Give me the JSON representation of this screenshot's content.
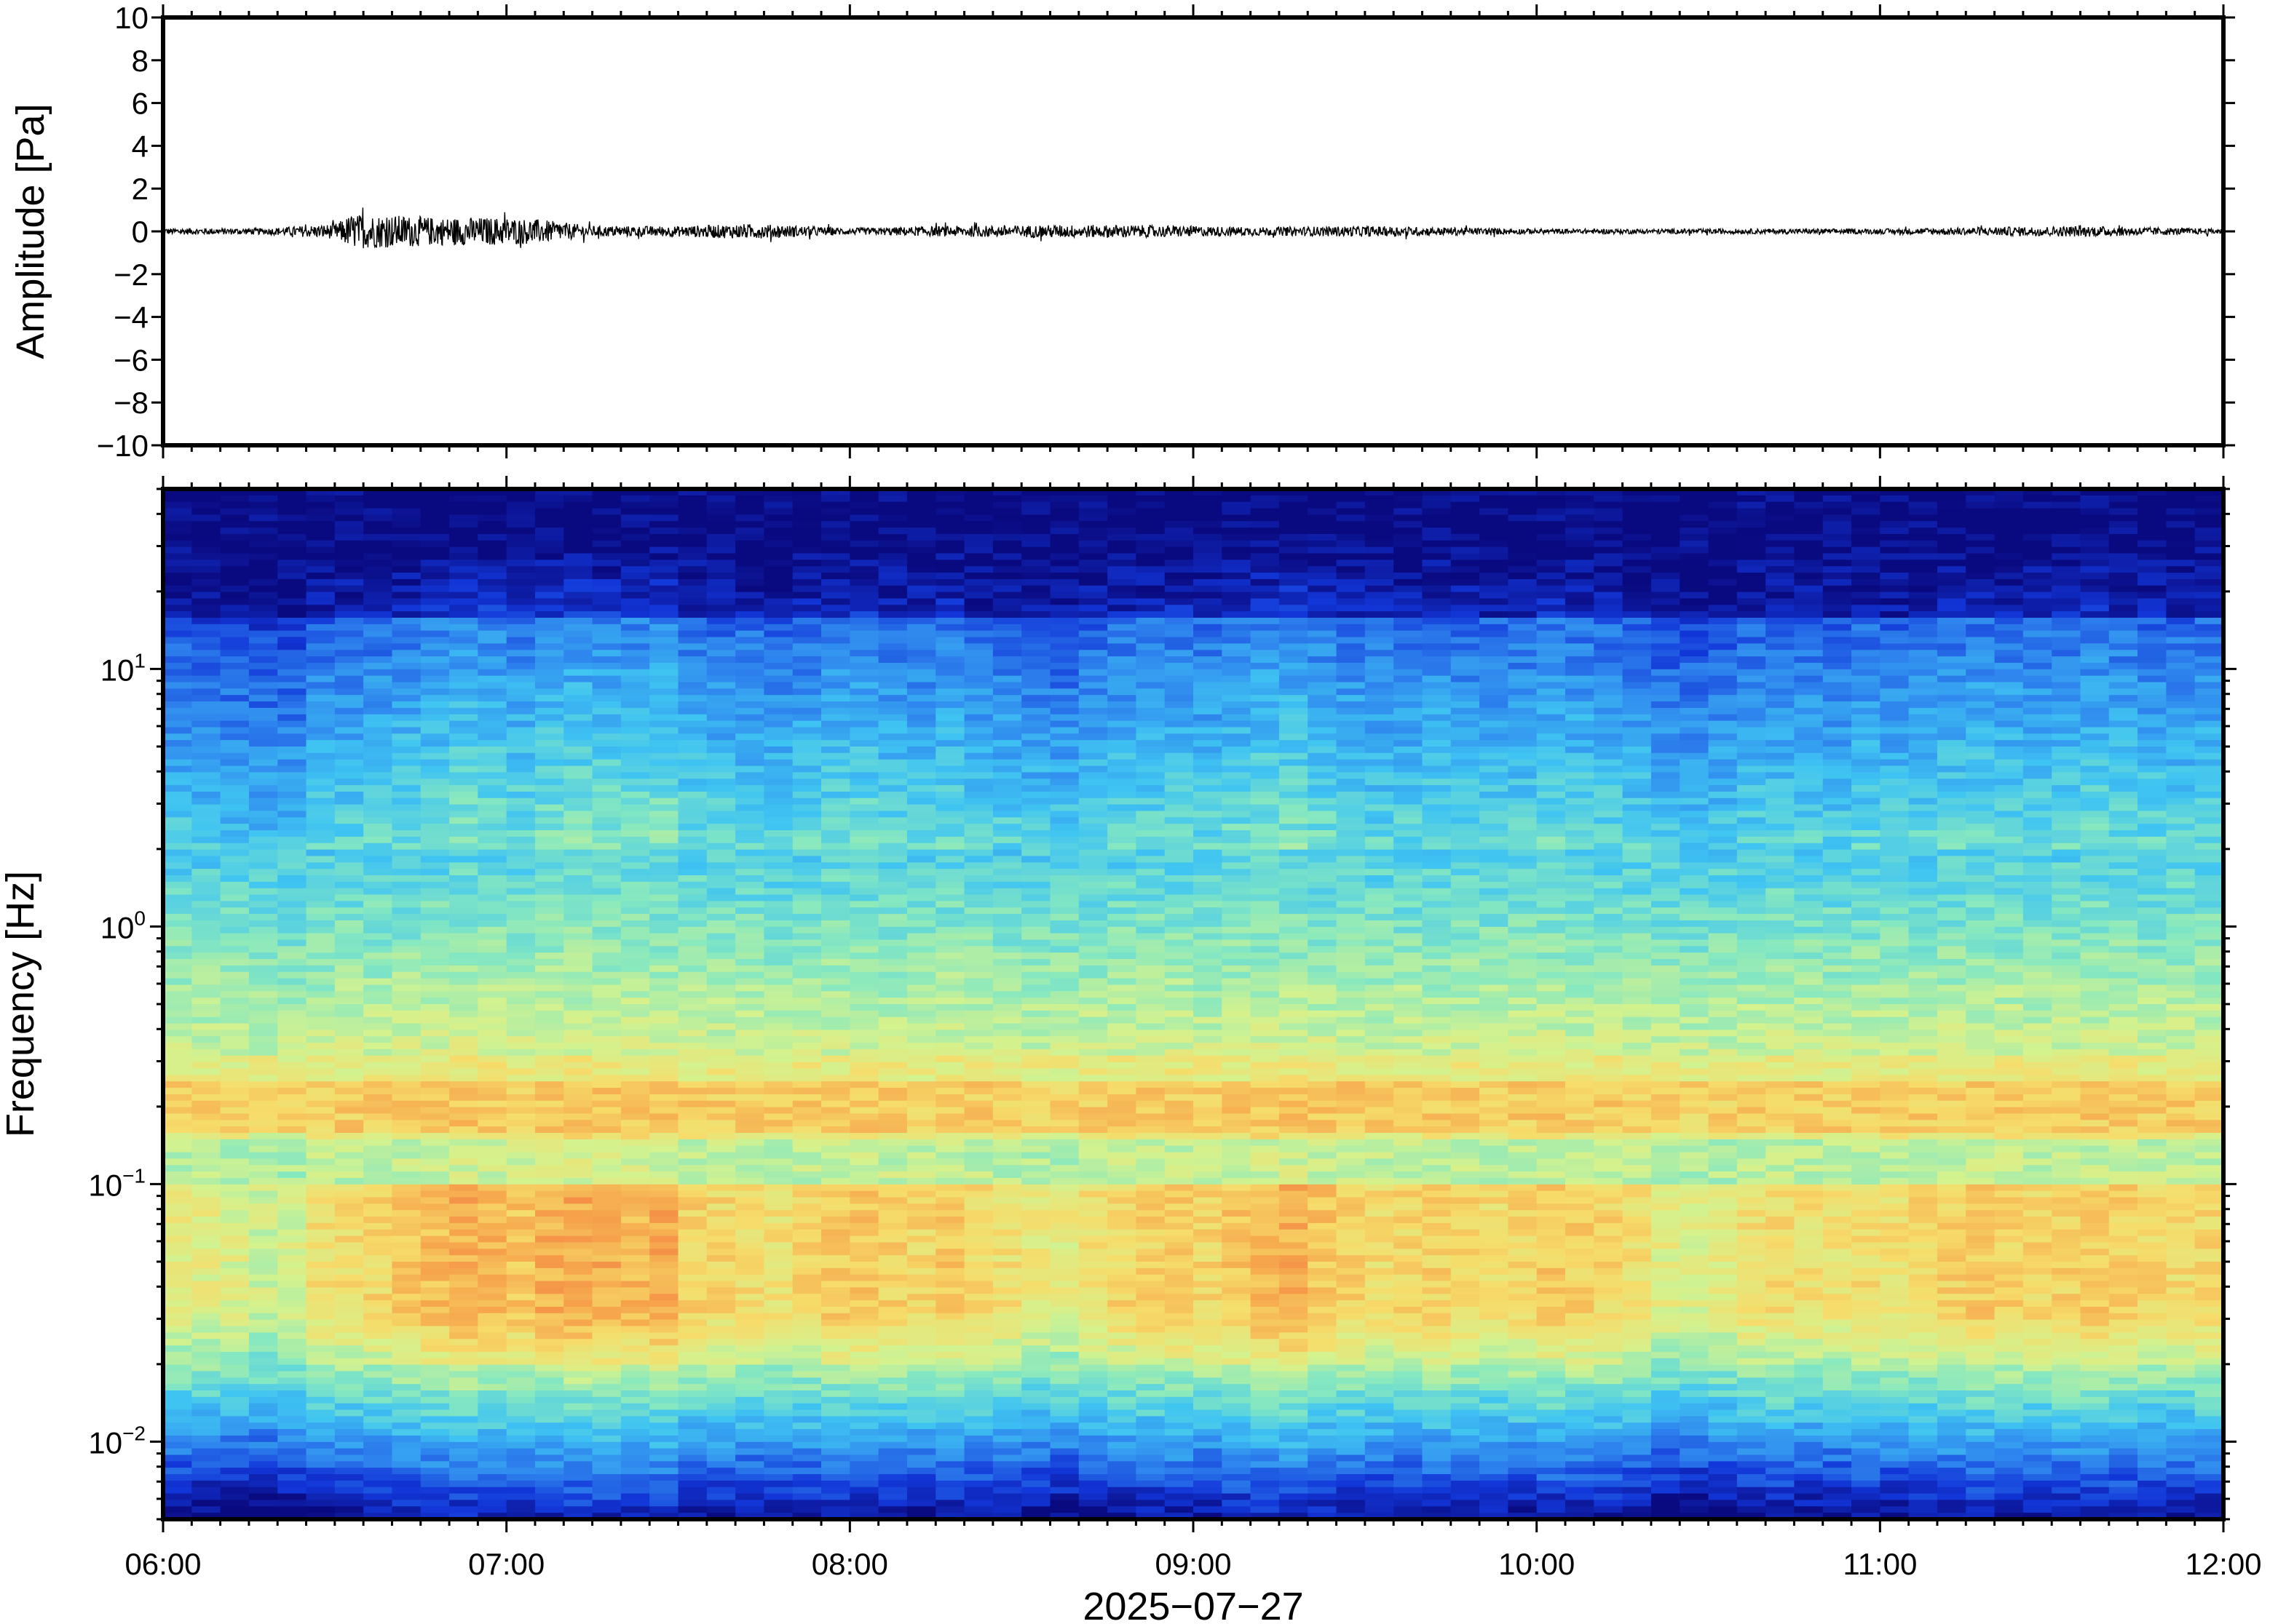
{
  "chart_data": [
    {
      "type": "line",
      "ylabel": "Amplitude [Pa]",
      "ylim": [
        -10,
        10
      ],
      "yticks": [
        10,
        8,
        6,
        4,
        2,
        0,
        -2,
        -4,
        -6,
        -8,
        -10
      ],
      "ytick_labels": [
        "10",
        "8",
        "6",
        "4",
        "2",
        "0",
        "−2",
        "−4",
        "−6",
        "−8",
        "−10"
      ],
      "xlim": [
        "06:00",
        "12:00"
      ],
      "series_color": "#000000",
      "envelope": {
        "description_units": "hours since 06:00 vs peak amplitude in Pa",
        "x": [
          0.0,
          0.3,
          0.5,
          0.55,
          0.7,
          0.8,
          1.0,
          1.1,
          1.25,
          1.5,
          1.7,
          1.8,
          2.0,
          2.3,
          2.6,
          2.8,
          3.2,
          3.5,
          4.0,
          4.5,
          5.0,
          5.3,
          5.6,
          6.0
        ],
        "amp": [
          0.15,
          0.15,
          0.35,
          0.8,
          0.75,
          0.65,
          0.65,
          0.55,
          0.25,
          0.25,
          0.35,
          0.3,
          0.15,
          0.25,
          0.3,
          0.3,
          0.2,
          0.25,
          0.12,
          0.12,
          0.12,
          0.2,
          0.25,
          0.12
        ]
      }
    },
    {
      "type": "heatmap",
      "ylabel": "Frequency [Hz]",
      "xlabel": "2025−07−27",
      "yscale": "log",
      "ylim": [
        0.005,
        50
      ],
      "yticks": [
        {
          "value": 10,
          "base": "10",
          "exp": "1"
        },
        {
          "value": 1,
          "base": "10",
          "exp": "0"
        },
        {
          "value": 0.1,
          "base": "10",
          "exp": "−1"
        },
        {
          "value": 0.01,
          "base": "10",
          "exp": "−2"
        }
      ],
      "xticks": [
        "06:00",
        "07:00",
        "08:00",
        "09:00",
        "10:00",
        "11:00",
        "12:00"
      ],
      "colormap": "jet",
      "colors": [
        "#0a0a80",
        "#1236d8",
        "#2f86ee",
        "#3fc4f2",
        "#86e8c0",
        "#d4f28e",
        "#f6dc6a",
        "#f6a54c",
        "#ef5e3a"
      ],
      "time_columns": 72,
      "column_activity": [
        0.2,
        0.15,
        0.1,
        0.0,
        0.05,
        0.35,
        0.4,
        0.45,
        0.55,
        0.65,
        0.75,
        0.7,
        0.6,
        0.75,
        0.8,
        0.75,
        0.7,
        0.8,
        0.5,
        0.45,
        0.4,
        0.35,
        0.45,
        0.55,
        0.6,
        0.5,
        0.45,
        0.55,
        0.4,
        0.35,
        0.25,
        0.2,
        0.35,
        0.45,
        0.5,
        0.55,
        0.45,
        0.6,
        0.7,
        0.75,
        0.6,
        0.5,
        0.4,
        0.45,
        0.5,
        0.45,
        0.4,
        0.45,
        0.55,
        0.5,
        0.45,
        0.35,
        0.15,
        0.1,
        0.2,
        0.35,
        0.4,
        0.35,
        0.3,
        0.4,
        0.35,
        0.45,
        0.5,
        0.55,
        0.5,
        0.45,
        0.5,
        0.55,
        0.5,
        0.45,
        0.4,
        0.45
      ],
      "microbarom_band_hz": [
        0.15,
        0.25
      ]
    }
  ]
}
